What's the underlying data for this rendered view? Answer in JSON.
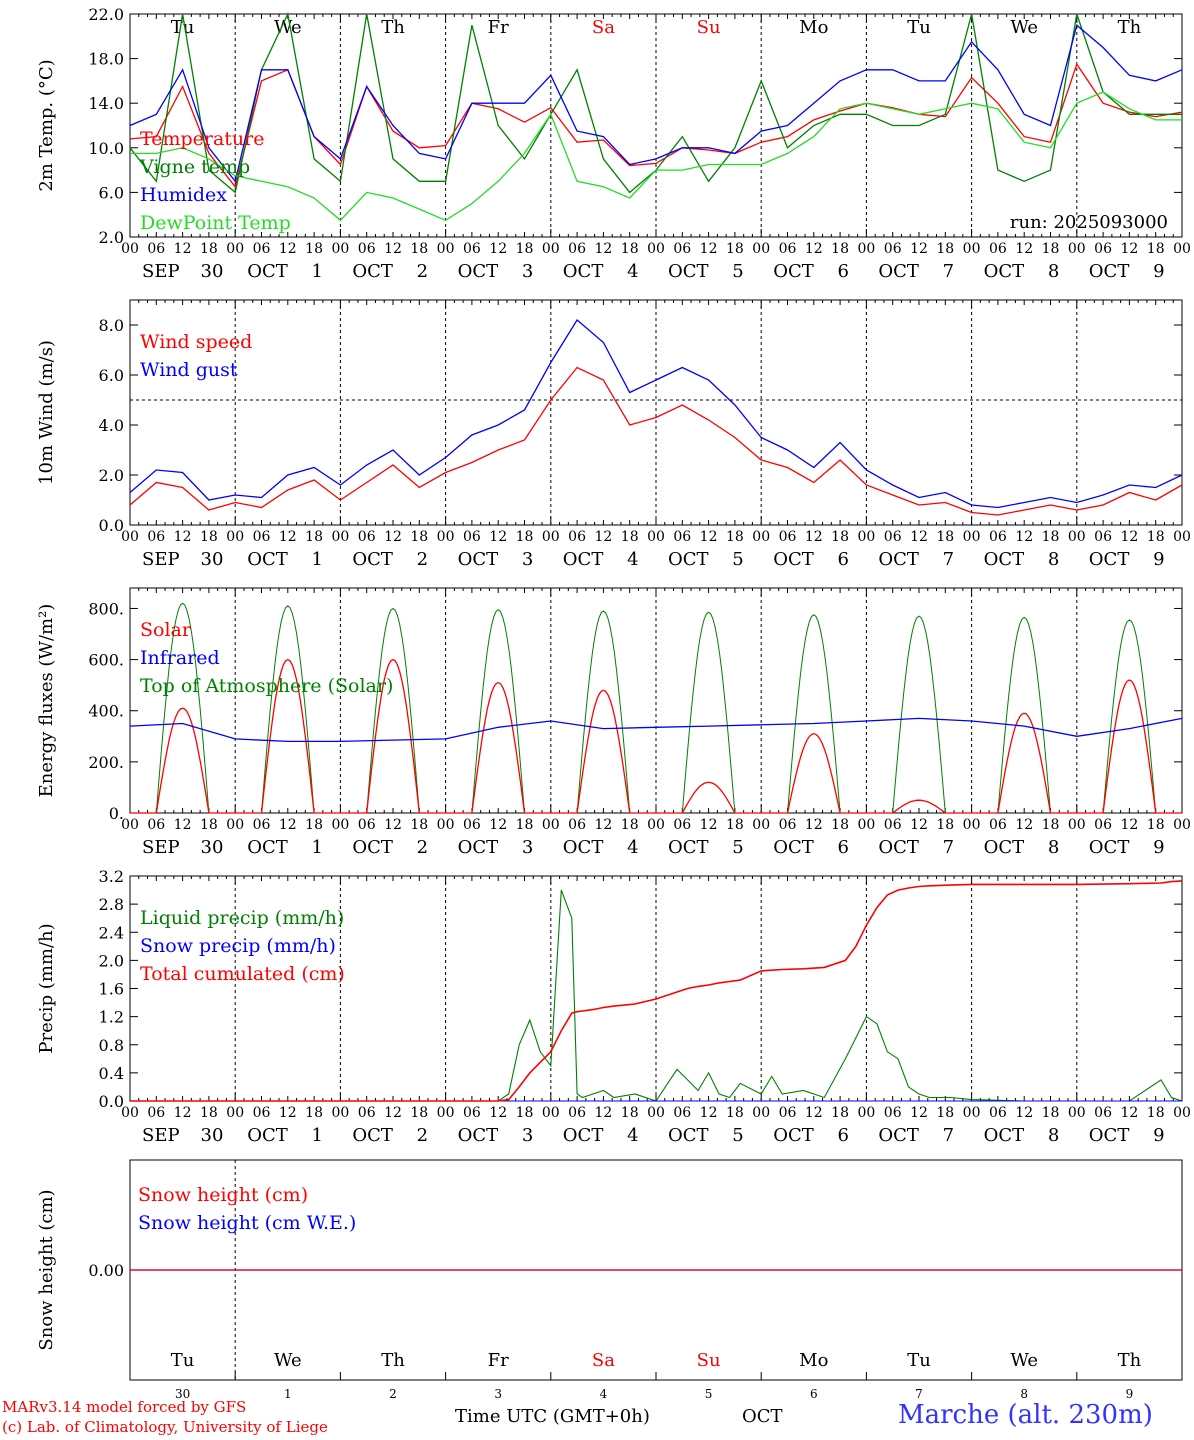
{
  "hours": [
    "00",
    "06",
    "12",
    "18"
  ],
  "end_hour": "00",
  "date_labels": [
    {
      "month": "SEP",
      "day": "30"
    },
    {
      "month": "OCT",
      "day": "1"
    },
    {
      "month": "OCT",
      "day": "2"
    },
    {
      "month": "OCT",
      "day": "3"
    },
    {
      "month": "OCT",
      "day": "4"
    },
    {
      "month": "OCT",
      "day": "5"
    },
    {
      "month": "OCT",
      "day": "6"
    },
    {
      "month": "OCT",
      "day": "7"
    },
    {
      "month": "OCT",
      "day": "8"
    },
    {
      "month": "OCT",
      "day": "9"
    }
  ],
  "weekdays": [
    {
      "name": "Tu",
      "weekend": false
    },
    {
      "name": "We",
      "weekend": false
    },
    {
      "name": "Th",
      "weekend": false
    },
    {
      "name": "Fr",
      "weekend": false
    },
    {
      "name": "Sa",
      "weekend": true
    },
    {
      "name": "Su",
      "weekend": true
    },
    {
      "name": "Mo",
      "weekend": false
    },
    {
      "name": "Tu",
      "weekend": false
    },
    {
      "name": "We",
      "weekend": false
    },
    {
      "name": "Th",
      "weekend": false
    }
  ],
  "snow_day_numbers": [
    "30",
    "1",
    "2",
    "3",
    "4",
    "5",
    "6",
    "7",
    "8",
    "9"
  ],
  "colors": {
    "red": "#ff0000",
    "green": "#008000",
    "blue": "#0000ff",
    "lightgreen": "#22dd22"
  },
  "footer": {
    "credit1": "MARv3.14 model forced by GFS",
    "credit2": "(c) Lab. of Climatology, University of Liege",
    "xlabel": "Time UTC (GMT+0h)",
    "month": "OCT",
    "station": "Marche (alt. 230m)"
  },
  "chart_data": [
    {
      "type": "line",
      "title": "2m Temp. (°C)",
      "ylabel": "2m Temp. (°C)",
      "ylim": [
        2.0,
        22.0
      ],
      "yticks": [
        "2.0",
        "6.0",
        "10.0",
        "14.0",
        "18.0",
        "22.0"
      ],
      "annotation": "run: 2025093000",
      "x_days": [
        0,
        0.25,
        0.5,
        0.75,
        1,
        1.25,
        1.5,
        1.75,
        2,
        2.25,
        2.5,
        2.75,
        3,
        3.25,
        3.5,
        3.75,
        4,
        4.25,
        4.5,
        4.75,
        5,
        5.25,
        5.5,
        5.75,
        6,
        6.25,
        6.5,
        6.75,
        7,
        7.25,
        7.5,
        7.75,
        8,
        8.25,
        8.5,
        8.75,
        9,
        9.25,
        9.5,
        9.75,
        10
      ],
      "series": [
        {
          "name": "Temperature",
          "color": "red",
          "values": [
            10.8,
            11,
            15.5,
            9.5,
            6.5,
            16,
            17,
            11,
            8.5,
            15.5,
            11.5,
            10,
            10.2,
            14,
            13.5,
            12.3,
            13.6,
            10.5,
            10.7,
            8.4,
            8.6,
            10,
            9.8,
            9.5,
            10.5,
            11,
            12.5,
            13.3,
            14,
            13.6,
            13,
            12.8,
            16.3,
            14,
            11,
            10.5,
            17.5,
            14,
            13.2,
            12.8,
            13.2
          ]
        },
        {
          "name": "Vigne temp",
          "color": "green",
          "values": [
            10,
            7,
            22,
            8,
            6,
            17,
            22,
            9,
            7,
            22,
            9,
            7,
            7,
            21,
            12,
            9,
            13,
            17,
            9,
            6,
            8,
            11,
            7,
            10,
            16,
            10,
            12,
            13,
            13,
            12,
            12,
            13,
            22,
            8,
            7,
            8,
            22,
            15,
            13,
            13,
            13
          ]
        },
        {
          "name": "Humidex",
          "color": "blue",
          "values": [
            12,
            13,
            17,
            10,
            7,
            17,
            17,
            11,
            9,
            15.5,
            12,
            9.5,
            9,
            14,
            14,
            14,
            16.5,
            11.5,
            11,
            8.5,
            9,
            10,
            10,
            9.5,
            11.5,
            12,
            14,
            16,
            17,
            17,
            16,
            16,
            19.5,
            17,
            13,
            12,
            21,
            19,
            16.5,
            16,
            17
          ]
        },
        {
          "name": "DewPoint Temp",
          "color": "lightgreen",
          "values": [
            9.5,
            9.5,
            10,
            9,
            7.5,
            7,
            6.5,
            5.5,
            3.5,
            6,
            5.5,
            4.5,
            3.5,
            5,
            7,
            9.5,
            13,
            7,
            6.5,
            5.5,
            8,
            8,
            8.5,
            8.5,
            8.5,
            9.5,
            11,
            13.5,
            14,
            13.5,
            13,
            13.5,
            14,
            13.5,
            10.5,
            10,
            14,
            15,
            13.5,
            12.5,
            12.5
          ]
        }
      ]
    },
    {
      "type": "line",
      "title": "10m Wind (m/s)",
      "ylabel": "10m Wind (m/s)",
      "ylim": [
        0.0,
        9.0
      ],
      "yticks": [
        "0.0",
        "2.0",
        "4.0",
        "6.0",
        "8.0"
      ],
      "reference_line": 5.0,
      "x_days": [
        0,
        0.25,
        0.5,
        0.75,
        1,
        1.25,
        1.5,
        1.75,
        2,
        2.25,
        2.5,
        2.75,
        3,
        3.25,
        3.5,
        3.75,
        4,
        4.25,
        4.5,
        4.75,
        5,
        5.25,
        5.5,
        5.75,
        6,
        6.25,
        6.5,
        6.75,
        7,
        7.25,
        7.5,
        7.75,
        8,
        8.25,
        8.5,
        8.75,
        9,
        9.25,
        9.5,
        9.75,
        10
      ],
      "series": [
        {
          "name": "Wind speed",
          "color": "red",
          "values": [
            0.8,
            1.7,
            1.5,
            0.6,
            0.9,
            0.7,
            1.4,
            1.8,
            1,
            1.7,
            2.4,
            1.5,
            2.1,
            2.5,
            3,
            3.4,
            5,
            6.3,
            5.8,
            4,
            4.3,
            4.8,
            4.2,
            3.5,
            2.6,
            2.3,
            1.7,
            2.6,
            1.6,
            1.2,
            0.8,
            0.9,
            0.5,
            0.4,
            0.6,
            0.8,
            0.6,
            0.8,
            1.3,
            1,
            1.6
          ]
        },
        {
          "name": "Wind gust",
          "color": "blue",
          "values": [
            1.3,
            2.2,
            2.1,
            1,
            1.2,
            1.1,
            2,
            2.3,
            1.6,
            2.4,
            3,
            2,
            2.7,
            3.6,
            4,
            4.6,
            6.5,
            8.2,
            7.3,
            5.3,
            5.8,
            6.3,
            5.8,
            4.8,
            3.5,
            3,
            2.3,
            3.3,
            2.2,
            1.6,
            1.1,
            1.3,
            0.8,
            0.7,
            0.9,
            1.1,
            0.9,
            1.2,
            1.6,
            1.5,
            2
          ]
        }
      ]
    },
    {
      "type": "line",
      "title": "Energy fluxes (W/m²)",
      "ylabel": "Energy fluxes (W/m²)",
      "ylim": [
        0,
        880
      ],
      "yticks": [
        "0.",
        "200.",
        "400.",
        "600.",
        "800."
      ],
      "diurnal": {
        "sunrise_hour": 6,
        "sunset_hour": 18,
        "shape": "sine"
      },
      "toa_daily_peak": [
        820,
        810,
        800,
        795,
        790,
        785,
        775,
        770,
        765,
        755
      ],
      "solar_daily_peak": [
        410,
        600,
        600,
        510,
        480,
        120,
        310,
        50,
        390,
        520
      ],
      "infrared": {
        "x_days": [
          0,
          0.5,
          1,
          1.5,
          2,
          2.5,
          3,
          3.5,
          4,
          4.5,
          5,
          5.5,
          6,
          6.5,
          7,
          7.5,
          8,
          8.5,
          9,
          9.5,
          10
        ],
        "values": [
          340,
          350,
          290,
          280,
          280,
          285,
          290,
          335,
          360,
          330,
          335,
          340,
          345,
          350,
          360,
          370,
          360,
          340,
          300,
          330,
          370
        ]
      },
      "series_names": [
        {
          "name": "Solar",
          "color": "red"
        },
        {
          "name": "Infrared",
          "color": "blue"
        },
        {
          "name": "Top of Atmosphere (Solar)",
          "color": "green"
        }
      ]
    },
    {
      "type": "line",
      "title": "Precip (mm/h)",
      "ylabel": "Precip (mm/h)",
      "ylim": [
        0.0,
        3.2
      ],
      "yticks": [
        "0.0",
        "0.4",
        "0.8",
        "1.2",
        "1.6",
        "2.0",
        "2.4",
        "2.8",
        "3.2"
      ],
      "x_days": [
        0,
        0.5,
        1,
        1.5,
        2,
        2.5,
        3,
        3.5,
        3.6,
        3.7,
        3.8,
        3.9,
        4,
        4.1,
        4.2,
        4.25,
        4.3,
        4.4,
        4.5,
        4.6,
        4.8,
        5,
        5.2,
        5.3,
        5.4,
        5.5,
        5.6,
        5.7,
        5.8,
        6,
        6.1,
        6.2,
        6.4,
        6.6,
        6.8,
        6.9,
        7,
        7.1,
        7.2,
        7.3,
        7.4,
        7.5,
        7.6,
        7.8,
        8,
        8.5,
        9,
        9.5,
        9.8,
        9.9,
        10
      ],
      "series": [
        {
          "name": "Liquid precip (mm/h)",
          "color": "green",
          "values": [
            0,
            0,
            0,
            0,
            0,
            0,
            0,
            0,
            0.1,
            0.8,
            1.15,
            0.7,
            0.5,
            3.0,
            2.6,
            0.1,
            0.05,
            0.1,
            0.15,
            0.05,
            0.1,
            0,
            0.45,
            0.3,
            0.15,
            0.4,
            0.1,
            0.05,
            0.25,
            0.1,
            0.35,
            0.1,
            0.15,
            0.05,
            0.6,
            0.9,
            1.2,
            1.1,
            0.7,
            0.6,
            0.2,
            0.1,
            0.05,
            0.05,
            0.02,
            0,
            0,
            0,
            0.3,
            0.05,
            0
          ]
        },
        {
          "name": "Snow precip (mm/h)",
          "color": "blue",
          "values": [
            0,
            0,
            0,
            0,
            0,
            0,
            0,
            0,
            0,
            0,
            0,
            0,
            0,
            0,
            0,
            0,
            0,
            0,
            0,
            0,
            0,
            0,
            0,
            0,
            0,
            0,
            0,
            0,
            0,
            0,
            0,
            0,
            0,
            0,
            0,
            0,
            0,
            0,
            0,
            0,
            0,
            0,
            0,
            0,
            0,
            0,
            0,
            0,
            0,
            0,
            0
          ]
        },
        {
          "name": "Total cumulated (cm)",
          "color": "red",
          "values": [
            0,
            0,
            0,
            0,
            0,
            0,
            0,
            0,
            0.02,
            0.2,
            0.4,
            0.55,
            0.7,
            1.0,
            1.25,
            1.27,
            1.28,
            1.3,
            1.33,
            1.35,
            1.38,
            1.45,
            1.55,
            1.6,
            1.63,
            1.65,
            1.68,
            1.7,
            1.72,
            1.85,
            1.86,
            1.87,
            1.88,
            1.9,
            2.0,
            2.2,
            2.5,
            2.75,
            2.93,
            3.0,
            3.03,
            3.05,
            3.06,
            3.07,
            3.08,
            3.08,
            3.08,
            3.09,
            3.1,
            3.12,
            3.13
          ]
        }
      ]
    },
    {
      "type": "line",
      "title": "Snow height (cm)",
      "ylabel": "Snow height (cm)",
      "ylim": [
        -1,
        1
      ],
      "yticks": [
        "0.00"
      ],
      "x_days": [
        0,
        10
      ],
      "series": [
        {
          "name": "Snow height (cm)",
          "color": "red",
          "values": [
            0,
            0
          ]
        },
        {
          "name": "Snow height (cm W.E.)",
          "color": "blue",
          "values": [
            0,
            0
          ]
        }
      ]
    }
  ]
}
